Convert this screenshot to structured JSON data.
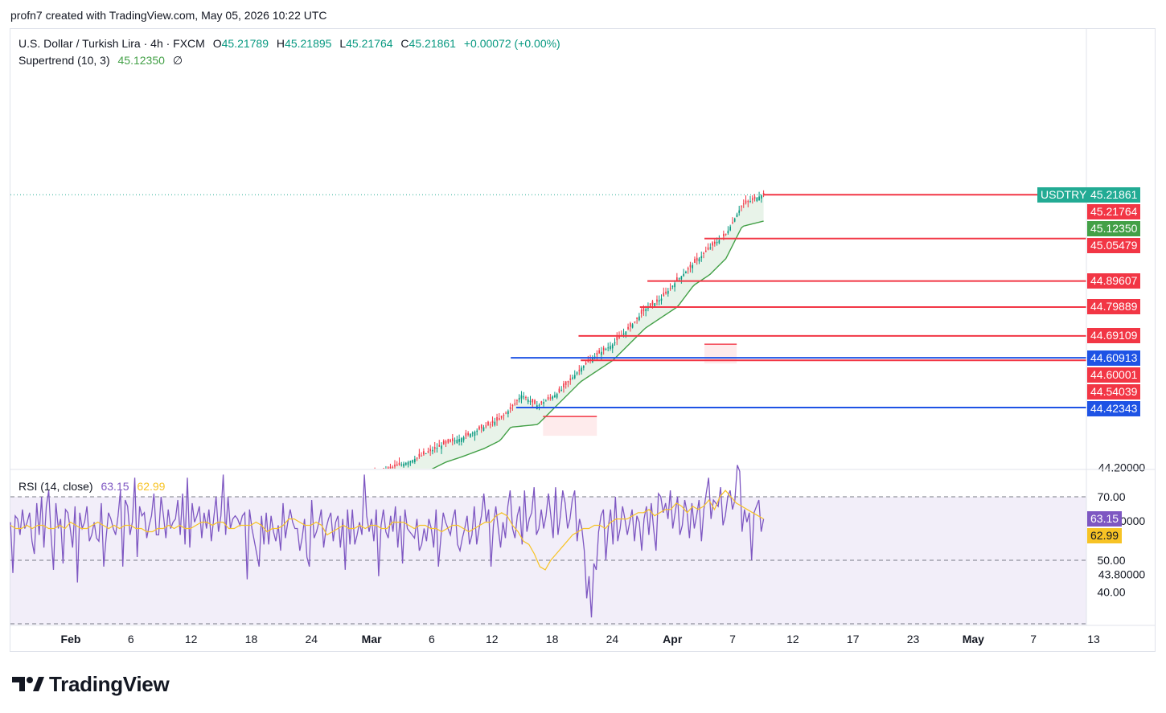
{
  "header": {
    "attribution": "profn7 created with TradingView.com, May 05, 2026 10:22 UTC"
  },
  "legend": {
    "symbol_desc": "U.S. Dollar / Turkish Lira · 4h · FXCM",
    "o_label": "O",
    "o_value": "45.21789",
    "h_label": "H",
    "h_value": "45.21895",
    "l_label": "L",
    "l_value": "45.21764",
    "c_label": "C",
    "c_value": "45.21861",
    "change": "+0.00072 (+0.00%)",
    "supertrend_label": "Supertrend (10, 3)",
    "supertrend_value": "45.12350",
    "supertrend_icon": "∅",
    "rsi_label": "RSI (14, close)",
    "rsi_value": "63.15",
    "rsi_ma_value": "62.99"
  },
  "price_tags": [
    {
      "text": "USDTRY",
      "color": "#22ab94",
      "y": 45.21861
    },
    {
      "text": "45.21861",
      "color": "#22ab94",
      "y": 45.21861
    },
    {
      "text": "45.21764",
      "color": "#f23645",
      "y": 45.21764
    },
    {
      "text": "45.12350",
      "color": "#43a047",
      "y": 45.1235
    },
    {
      "text": "45.05479",
      "color": "#f23645",
      "y": 45.05479
    },
    {
      "text": "44.89607",
      "color": "#f23645",
      "y": 44.89607
    },
    {
      "text": "44.79889",
      "color": "#f23645",
      "y": 44.79889
    },
    {
      "text": "44.69109",
      "color": "#f23645",
      "y": 44.69109
    },
    {
      "text": "44.60913",
      "color": "#1e53e5",
      "y": 44.60913
    },
    {
      "text": "44.60001",
      "color": "#f23645",
      "y": 44.60001
    },
    {
      "text": "44.54039",
      "color": "#f23645",
      "y": 44.54039
    },
    {
      "text": "44.42343",
      "color": "#1e53e5",
      "y": 44.42343
    }
  ],
  "footer": {
    "logo_text": "TradingView",
    "logo_icon": "tradingview-logo-icon"
  },
  "chart_data": [
    {
      "type": "candlestick",
      "symbol": "USDTRY",
      "interval": "4h",
      "x_axis": {
        "ticks": [
          "Feb",
          "6",
          "12",
          "18",
          "24",
          "Mar",
          "6",
          "12",
          "18",
          "24",
          "Apr",
          "7",
          "12",
          "17",
          "23",
          "May",
          "7",
          "13"
        ],
        "bold_ticks": [
          "Feb",
          "Mar",
          "Apr",
          "May"
        ]
      },
      "y_axis": {
        "ticks": [
          43.8,
          44.0,
          44.2
        ],
        "tick_labels": [
          "43.80000",
          "44.00000",
          "44.20000"
        ],
        "range": [
          43.63,
          45.25
        ]
      },
      "close_anchors": [
        [
          0.0,
          43.62
        ],
        [
          0.05,
          43.61
        ],
        [
          0.085,
          43.66
        ],
        [
          0.095,
          43.7
        ],
        [
          0.12,
          43.75
        ],
        [
          0.135,
          43.82
        ],
        [
          0.145,
          43.78
        ],
        [
          0.175,
          43.85
        ],
        [
          0.185,
          43.88
        ],
        [
          0.21,
          43.91
        ],
        [
          0.225,
          43.94
        ],
        [
          0.245,
          43.98
        ],
        [
          0.255,
          44.02
        ],
        [
          0.275,
          44.04
        ],
        [
          0.3,
          44.07
        ],
        [
          0.32,
          44.12
        ],
        [
          0.335,
          44.16
        ],
        [
          0.355,
          44.2
        ],
        [
          0.37,
          44.22
        ],
        [
          0.385,
          44.25
        ],
        [
          0.405,
          44.29
        ],
        [
          0.42,
          44.31
        ],
        [
          0.44,
          44.35
        ],
        [
          0.455,
          44.38
        ],
        [
          0.465,
          44.42
        ],
        [
          0.475,
          44.47
        ],
        [
          0.49,
          44.43
        ],
        [
          0.51,
          44.48
        ],
        [
          0.53,
          44.57
        ],
        [
          0.545,
          44.62
        ],
        [
          0.56,
          44.66
        ],
        [
          0.575,
          44.72
        ],
        [
          0.59,
          44.79
        ],
        [
          0.605,
          44.83
        ],
        [
          0.62,
          44.9
        ],
        [
          0.635,
          44.96
        ],
        [
          0.65,
          45.02
        ],
        [
          0.665,
          45.07
        ],
        [
          0.68,
          45.18
        ],
        [
          0.7,
          45.22
        ]
      ],
      "supertrend_anchors": [
        [
          0.0,
          43.58
        ],
        [
          0.12,
          43.7
        ],
        [
          0.145,
          43.72
        ],
        [
          0.175,
          43.78
        ],
        [
          0.21,
          43.84
        ],
        [
          0.235,
          43.88
        ],
        [
          0.255,
          43.92
        ],
        [
          0.275,
          43.96
        ],
        [
          0.3,
          43.98
        ],
        [
          0.32,
          44.06
        ],
        [
          0.335,
          44.08
        ],
        [
          0.355,
          44.12
        ],
        [
          0.37,
          44.14
        ],
        [
          0.385,
          44.18
        ],
        [
          0.405,
          44.22
        ],
        [
          0.42,
          44.24
        ],
        [
          0.44,
          44.27
        ],
        [
          0.455,
          44.3
        ],
        [
          0.465,
          44.35
        ],
        [
          0.49,
          44.36
        ],
        [
          0.5,
          44.4
        ],
        [
          0.51,
          44.44
        ],
        [
          0.53,
          44.52
        ],
        [
          0.545,
          44.56
        ],
        [
          0.56,
          44.6
        ],
        [
          0.575,
          44.66
        ],
        [
          0.59,
          44.72
        ],
        [
          0.605,
          44.76
        ],
        [
          0.62,
          44.8
        ],
        [
          0.635,
          44.88
        ],
        [
          0.65,
          44.92
        ],
        [
          0.665,
          44.98
        ],
        [
          0.68,
          45.1
        ],
        [
          0.7,
          45.12
        ]
      ],
      "downtrend_segments": [
        {
          "x": [
            0.165,
            0.225
          ],
          "y": 43.79
        },
        {
          "x": [
            0.295,
            0.355
          ],
          "y": 44.01
        },
        {
          "x": [
            0.495,
            0.545
          ],
          "y": 44.39
        },
        {
          "x": [
            0.645,
            0.675
          ],
          "y": 44.66
        }
      ],
      "horizontal_levels": [
        {
          "y": 45.21861,
          "color": "#f23645",
          "from": 0.7
        },
        {
          "y": 45.05479,
          "color": "#f23645",
          "from": 0.645
        },
        {
          "y": 44.89607,
          "color": "#f23645",
          "from": 0.592
        },
        {
          "y": 44.79889,
          "color": "#f23645",
          "from": 0.585
        },
        {
          "y": 44.69109,
          "color": "#f23645",
          "from": 0.528
        },
        {
          "y": 44.60913,
          "color": "#1e53e5",
          "from": 0.465
        },
        {
          "y": 44.60001,
          "color": "#f23645",
          "from": 0.53
        },
        {
          "y": 44.42343,
          "color": "#1e53e5",
          "from": 0.47
        }
      ]
    },
    {
      "type": "line",
      "title": "RSI (14, close)",
      "y_axis": {
        "ticks": [
          40,
          50,
          70
        ],
        "tick_labels": [
          "40.00",
          "50.00",
          "70.00"
        ],
        "range": [
          30,
          80
        ]
      },
      "bands": {
        "upper": 70,
        "lower": 50
      },
      "series": [
        {
          "name": "RSI",
          "color": "#7e57c2",
          "values": [
            62,
            46,
            64,
            63,
            58,
            66,
            60,
            62,
            65,
            56,
            52,
            68,
            58,
            70,
            54,
            67,
            72,
            58,
            47,
            68,
            60,
            63,
            49,
            66,
            65,
            60,
            54,
            67,
            43,
            65,
            60,
            62,
            67,
            56,
            58,
            62,
            57,
            56,
            68,
            48,
            57,
            65,
            63,
            60,
            58,
            64,
            72,
            48,
            69,
            67,
            58,
            62,
            76,
            51,
            67,
            64,
            65,
            57,
            61,
            64,
            71,
            58,
            58,
            70,
            64,
            57,
            66,
            60,
            62,
            63,
            69,
            58,
            71,
            55,
            76,
            54,
            68,
            62,
            64,
            67,
            57,
            65,
            60,
            66,
            56,
            63,
            70,
            59,
            64,
            77,
            58,
            70,
            60,
            63,
            64,
            63,
            61,
            64,
            65,
            44,
            66,
            60,
            56,
            52,
            48,
            64,
            55,
            65,
            55,
            64,
            59,
            56,
            61,
            53,
            68,
            57,
            62,
            66,
            62,
            60,
            60,
            53,
            57,
            63,
            51,
            48,
            69,
            57,
            59,
            62,
            66,
            54,
            60,
            63,
            65,
            56,
            62,
            64,
            54,
            63,
            47,
            66,
            55,
            66,
            55,
            58,
            62,
            58,
            77,
            64,
            59,
            63,
            56,
            66,
            45,
            61,
            66,
            59,
            57,
            64,
            59,
            67,
            54,
            64,
            49,
            66,
            60,
            59,
            58,
            57,
            63,
            53,
            55,
            60,
            56,
            63,
            60,
            54,
            66,
            48,
            57,
            65,
            62,
            60,
            58,
            63,
            66,
            55,
            53,
            57,
            60,
            64,
            55,
            58,
            67,
            55,
            60,
            64,
            71,
            62,
            66,
            48,
            61,
            67,
            60,
            54,
            62,
            57,
            67,
            72,
            60,
            57,
            64,
            67,
            55,
            72,
            59,
            63,
            65,
            73,
            58,
            60,
            66,
            60,
            64,
            71,
            64,
            57,
            73,
            58,
            64,
            72,
            68,
            60,
            63,
            69,
            72,
            56,
            63,
            60,
            53,
            38,
            45,
            32,
            49,
            47,
            59,
            64,
            66,
            50,
            60,
            66,
            55,
            70,
            56,
            60,
            67,
            63,
            58,
            62,
            66,
            56,
            64,
            62,
            53,
            63,
            67,
            58,
            68,
            60,
            53,
            71,
            70,
            65,
            68,
            63,
            72,
            60,
            65,
            70,
            58,
            61,
            69,
            65,
            57,
            68,
            60,
            64,
            69,
            56,
            66,
            71,
            76,
            63,
            69,
            68,
            67,
            73,
            61,
            64,
            70,
            72,
            66,
            69,
            80,
            78,
            59,
            66,
            62,
            65,
            50,
            65,
            67,
            69,
            59,
            63
          ]
        },
        {
          "name": "RSI MA",
          "color": "#f7c325",
          "values": [
            61,
            60,
            60,
            61,
            60,
            61,
            61,
            60,
            60,
            61,
            60,
            62,
            61,
            60,
            60,
            61,
            62,
            61,
            60,
            61,
            60,
            61,
            61,
            60,
            60,
            59,
            59,
            60,
            60,
            61,
            60,
            61,
            60,
            60,
            61,
            62,
            62,
            61,
            62,
            62,
            60,
            60,
            61,
            61,
            61,
            62,
            61,
            59,
            60,
            60,
            61,
            63,
            63,
            62,
            61,
            61,
            62,
            61,
            58,
            59,
            60,
            61,
            60,
            60,
            61,
            60,
            61,
            61,
            60,
            60,
            62,
            62,
            62,
            61,
            60,
            61,
            61,
            60,
            60,
            59,
            60,
            61,
            61,
            60,
            59,
            60,
            61,
            62,
            62,
            64,
            65,
            64,
            61,
            59,
            56,
            55,
            52,
            48,
            47,
            50,
            52,
            54,
            56,
            58,
            59,
            60,
            60,
            61,
            61,
            60,
            62,
            63,
            63,
            63,
            64,
            65,
            65,
            66,
            64,
            65,
            66,
            66,
            68,
            67,
            65,
            67,
            66,
            67,
            69,
            66,
            70,
            72,
            70,
            68,
            67,
            66,
            65,
            64,
            63
          ]
        }
      ]
    }
  ]
}
